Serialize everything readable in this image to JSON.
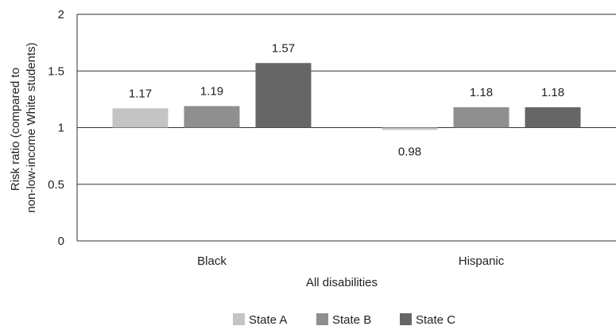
{
  "chart_data": {
    "type": "bar",
    "title": "",
    "xlabel": "All disabilities",
    "ylabel_lines": [
      "Risk ratio (compared to",
      "non-low-income White students)"
    ],
    "categories": [
      "Black",
      "Hispanic"
    ],
    "ylim": [
      0,
      2
    ],
    "yticks": [
      0,
      0.5,
      1,
      1.5,
      2
    ],
    "ytick_labels": [
      "0",
      "0.5",
      "1",
      "1.5",
      "2"
    ],
    "grid": true,
    "legend_position": "bottom",
    "series": [
      {
        "name": "State A",
        "color": "#c4c4c4",
        "values": [
          1.17,
          0.98
        ],
        "labels": [
          "1.17",
          "0.98"
        ]
      },
      {
        "name": "State B",
        "color": "#8f8f8f",
        "values": [
          1.19,
          1.18
        ],
        "labels": [
          "1.19",
          "1.18"
        ]
      },
      {
        "name": "State C",
        "color": "#666666",
        "values": [
          1.57,
          1.18
        ],
        "labels": [
          "1.57",
          "1.18"
        ]
      }
    ]
  }
}
